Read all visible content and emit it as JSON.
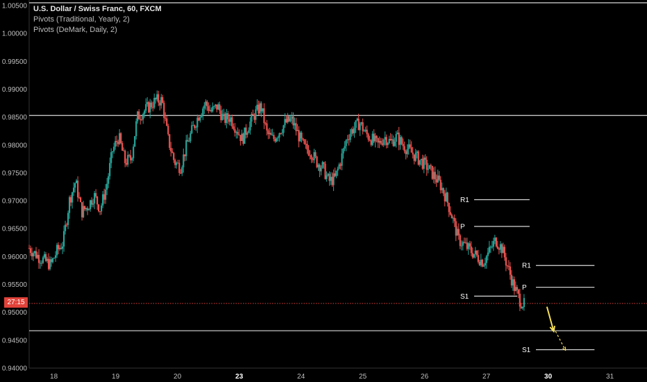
{
  "header": {
    "title": "U.S. Dollar / Swiss Franc, 60, FXCM",
    "indicators": [
      "Pivots (Traditional, Yearly, 2)",
      "Pivots (DeMark, Daily, 2)"
    ]
  },
  "price_tag": {
    "label": "27:15",
    "value": 0.9516
  },
  "colors": {
    "background": "#000000",
    "up": "#26a69a",
    "down": "#ef5350",
    "level_line": "#d8d8d8",
    "current_price": "#e0423a",
    "arrow": "#f5e05a",
    "axis_text": "#bfbfbf"
  },
  "chart_data": {
    "type": "candlestick",
    "ylim": [
      0.94,
      1.006
    ],
    "y_ticks": [
      "1.00500",
      "1.00000",
      "0.99500",
      "0.99000",
      "0.98500",
      "0.98000",
      "0.97500",
      "0.97000",
      "0.96500",
      "0.96000",
      "0.95500",
      "0.95000",
      "0.94500",
      "0.94000"
    ],
    "x_ticks": [
      {
        "label": "18",
        "x": 1.0
      },
      {
        "label": "19",
        "x": 2.0
      },
      {
        "label": "20",
        "x": 3.0
      },
      {
        "label": "23",
        "x": 4.0
      },
      {
        "label": "24",
        "x": 5.0
      },
      {
        "label": "25",
        "x": 6.0
      },
      {
        "label": "26",
        "x": 7.0
      },
      {
        "label": "27",
        "x": 8.0
      },
      {
        "label": "30",
        "x": 9.0
      },
      {
        "label": "31",
        "x": 10.0
      }
    ],
    "bold_x_ticks": [
      "23",
      "30"
    ],
    "xlim": [
      0.6,
      10.6
    ],
    "price_path": [
      [
        0.6,
        0.9615
      ],
      [
        0.75,
        0.96
      ],
      [
        0.95,
        0.9585
      ],
      [
        1.05,
        0.961
      ],
      [
        1.15,
        0.9625
      ],
      [
        1.25,
        0.97
      ],
      [
        1.35,
        0.9735
      ],
      [
        1.45,
        0.968
      ],
      [
        1.55,
        0.969
      ],
      [
        1.65,
        0.971
      ],
      [
        1.75,
        0.9685
      ],
      [
        1.85,
        0.9725
      ],
      [
        1.95,
        0.979
      ],
      [
        2.05,
        0.9815
      ],
      [
        2.15,
        0.977
      ],
      [
        2.25,
        0.9775
      ],
      [
        2.35,
        0.985
      ],
      [
        2.45,
        0.986
      ],
      [
        2.55,
        0.987
      ],
      [
        2.65,
        0.988
      ],
      [
        2.75,
        0.988
      ],
      [
        2.85,
        0.981
      ],
      [
        2.95,
        0.977
      ],
      [
        3.05,
        0.976
      ],
      [
        3.15,
        0.98
      ],
      [
        3.25,
        0.983
      ],
      [
        3.35,
        0.9855
      ],
      [
        3.45,
        0.9875
      ],
      [
        3.55,
        0.986
      ],
      [
        3.65,
        0.987
      ],
      [
        3.75,
        0.9845
      ],
      [
        3.85,
        0.985
      ],
      [
        3.95,
        0.983
      ],
      [
        4.05,
        0.981
      ],
      [
        4.15,
        0.9835
      ],
      [
        4.25,
        0.9855
      ],
      [
        4.35,
        0.987
      ],
      [
        4.45,
        0.982
      ],
      [
        4.55,
        0.981
      ],
      [
        4.65,
        0.9825
      ],
      [
        4.75,
        0.984
      ],
      [
        4.85,
        0.9845
      ],
      [
        4.95,
        0.982
      ],
      [
        5.05,
        0.9795
      ],
      [
        5.15,
        0.979
      ],
      [
        5.25,
        0.977
      ],
      [
        5.35,
        0.976
      ],
      [
        5.45,
        0.9735
      ],
      [
        5.55,
        0.974
      ],
      [
        5.65,
        0.9775
      ],
      [
        5.75,
        0.9815
      ],
      [
        5.85,
        0.983
      ],
      [
        5.95,
        0.984
      ],
      [
        6.05,
        0.982
      ],
      [
        6.15,
        0.981
      ],
      [
        6.25,
        0.98
      ],
      [
        6.35,
        0.9815
      ],
      [
        6.45,
        0.9805
      ],
      [
        6.55,
        0.9815
      ],
      [
        6.65,
        0.98
      ],
      [
        6.75,
        0.979
      ],
      [
        6.85,
        0.978
      ],
      [
        6.95,
        0.977
      ],
      [
        7.05,
        0.976
      ],
      [
        7.15,
        0.9745
      ],
      [
        7.25,
        0.973
      ],
      [
        7.35,
        0.9705
      ],
      [
        7.45,
        0.967
      ],
      [
        7.55,
        0.963
      ],
      [
        7.65,
        0.962
      ],
      [
        7.75,
        0.961
      ],
      [
        7.85,
        0.96
      ],
      [
        7.95,
        0.959
      ],
      [
        8.05,
        0.961
      ],
      [
        8.15,
        0.963
      ],
      [
        8.25,
        0.9615
      ],
      [
        8.35,
        0.958
      ],
      [
        8.45,
        0.9545
      ],
      [
        8.55,
        0.952
      ],
      [
        8.62,
        0.9513
      ]
    ],
    "horizontal_levels": [
      {
        "value": 1.0055,
        "x_range": [
          0.6,
          10.6
        ]
      },
      {
        "value": 0.9853,
        "x_range": [
          0.6,
          10.6
        ]
      },
      {
        "value": 0.9467,
        "x_range": [
          0.6,
          10.6
        ]
      }
    ],
    "pivot_levels": [
      {
        "label": "R1",
        "value": 0.9702,
        "x_range": [
          7.6,
          8.7
        ]
      },
      {
        "label": "P",
        "value": 0.9654,
        "x_range": [
          7.6,
          8.7
        ]
      },
      {
        "label": "S1",
        "value": 0.9529,
        "x_range": [
          7.6,
          8.5
        ]
      },
      {
        "label": "R1",
        "value": 0.9584,
        "x_range": [
          8.6,
          9.75
        ]
      },
      {
        "label": "P",
        "value": 0.9545,
        "x_range": [
          8.6,
          9.75
        ]
      },
      {
        "label": "S1",
        "value": 0.9433,
        "x_range": [
          8.6,
          9.75
        ]
      }
    ],
    "projection_arrows": [
      {
        "from": [
          8.98,
          0.951
        ],
        "to": [
          9.09,
          0.9466
        ],
        "style": "solid"
      },
      {
        "from": [
          9.12,
          0.9466
        ],
        "to": [
          9.28,
          0.9432
        ],
        "style": "dashed"
      }
    ]
  }
}
